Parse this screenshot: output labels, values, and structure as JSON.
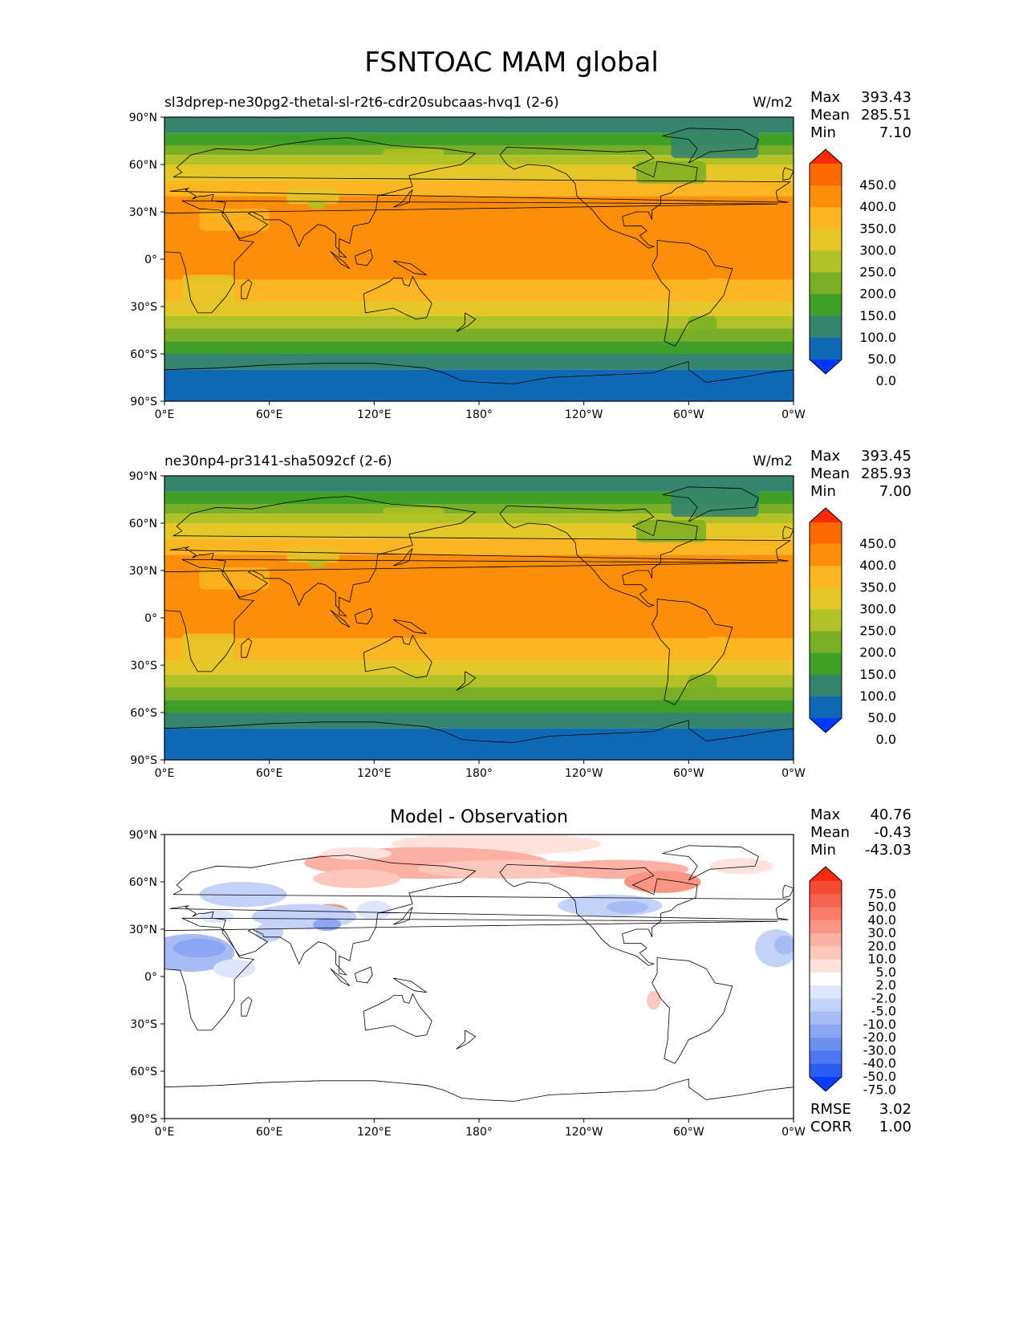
{
  "figure": {
    "title": "FSNTOAC MAM global"
  },
  "panels": [
    {
      "id": "test",
      "left_title": "sl3dprep-ne30pg2-thetal-sl-r2t6-cdr20subcaas-hvq1 (2-6)",
      "units": "W/m2",
      "stats": [
        {
          "label": "Max",
          "value": "393.43"
        },
        {
          "label": "Mean",
          "value": "285.51"
        },
        {
          "label": "Min",
          "value": "7.10"
        }
      ]
    },
    {
      "id": "ref",
      "left_title": "ne30np4-pr3141-sha5092cf (2-6)",
      "units": "W/m2",
      "stats": [
        {
          "label": "Max",
          "value": "393.45"
        },
        {
          "label": "Mean",
          "value": "285.93"
        },
        {
          "label": "Min",
          "value": "7.00"
        }
      ]
    },
    {
      "id": "diff",
      "center_title": "Model - Observation",
      "stats": [
        {
          "label": "Max",
          "value": "40.76"
        },
        {
          "label": "Mean",
          "value": "-0.43"
        },
        {
          "label": "Min",
          "value": "-43.03"
        }
      ],
      "extra_stats": [
        {
          "label": "RMSE",
          "value": "3.02"
        },
        {
          "label": "CORR",
          "value": "1.00"
        }
      ]
    }
  ],
  "chart_data": {
    "type": "heatmap",
    "map_projection": "PlateCarree",
    "lon_ticks": [
      "0°E",
      "60°E",
      "120°E",
      "180°",
      "120°W",
      "60°W",
      "0°W"
    ],
    "lat_ticks": [
      "90°N",
      "60°N",
      "30°N",
      "0°",
      "30°S",
      "60°S",
      "90°S"
    ],
    "field_colorbar": {
      "levels": [
        "450.0",
        "400.0",
        "350.0",
        "300.0",
        "250.0",
        "200.0",
        "150.0",
        "100.0",
        "50.0",
        "0.0"
      ],
      "colors": [
        "#ff2a0a",
        "#ff6a00",
        "#fd8e0c",
        "#fbb622",
        "#e4c729",
        "#b0c225",
        "#7aae25",
        "#3f9f27",
        "#348470",
        "#0f68b5",
        "#0437ff"
      ]
    },
    "diff_colorbar": {
      "levels": [
        "75.0",
        "50.0",
        "40.0",
        "30.0",
        "20.0",
        "10.0",
        "5.0",
        "2.0",
        "-2.0",
        "-5.0",
        "-10.0",
        "-20.0",
        "-30.0",
        "-40.0",
        "-50.0",
        "-75.0"
      ],
      "colors": [
        "#ff2a0a",
        "#f44b35",
        "#f66350",
        "#f77c6a",
        "#f99585",
        "#fbb0a3",
        "#fcc8be",
        "#fde2dc",
        "#ffffff",
        "#dee6fb",
        "#c4d2f8",
        "#a7bcf5",
        "#8ba6f2",
        "#6d8ff0",
        "#4f77ef",
        "#2d5cf2",
        "#0a3cff"
      ]
    },
    "zonal_bands_test": [
      {
        "lat": [
          90,
          80
        ],
        "color": "#348470"
      },
      {
        "lat": [
          80,
          72
        ],
        "color": "#3f9f27"
      },
      {
        "lat": [
          72,
          66
        ],
        "color": "#7aae25"
      },
      {
        "lat": [
          66,
          60
        ],
        "color": "#b0c225"
      },
      {
        "lat": [
          60,
          50
        ],
        "color": "#e4c729"
      },
      {
        "lat": [
          50,
          40
        ],
        "color": "#fbb622"
      },
      {
        "lat": [
          40,
          -13
        ],
        "color": "#fd8e0c"
      },
      {
        "lat": [
          -13,
          -27
        ],
        "color": "#fbb622"
      },
      {
        "lat": [
          -27,
          -36
        ],
        "color": "#e4c729"
      },
      {
        "lat": [
          -36,
          -44
        ],
        "color": "#b0c225"
      },
      {
        "lat": [
          -44,
          -52
        ],
        "color": "#7aae25"
      },
      {
        "lat": [
          -52,
          -60
        ],
        "color": "#3f9f27"
      },
      {
        "lat": [
          -60,
          -70
        ],
        "color": "#348470"
      },
      {
        "lat": [
          -70,
          -90
        ],
        "color": "#0f68b5"
      }
    ]
  }
}
